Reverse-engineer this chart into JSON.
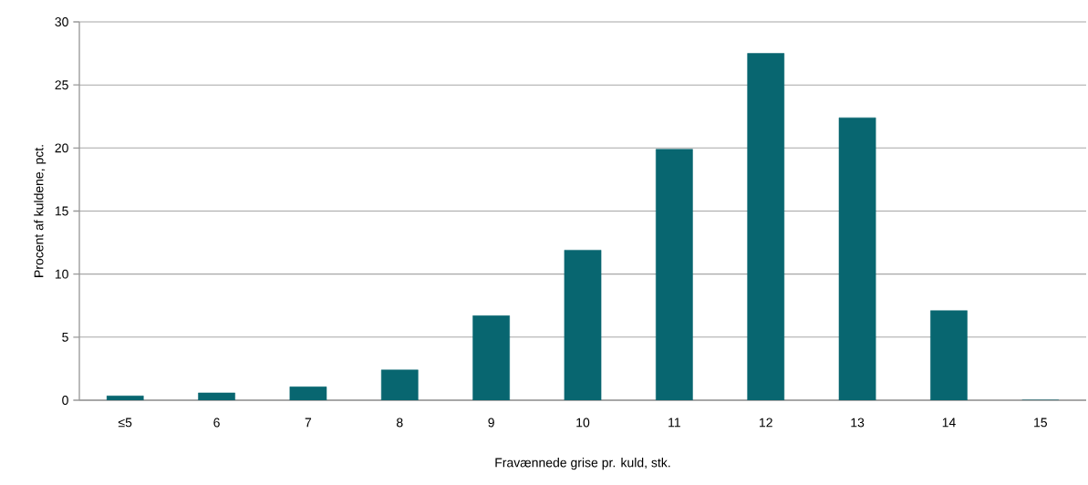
{
  "chart_data": {
    "type": "bar",
    "xlabel": "Fravænnede grise pr. kuld, stk.",
    "ylabel": "Procent af kuldene, pct.",
    "categories": [
      "≤5",
      "6",
      "7",
      "8",
      "9",
      "10",
      "11",
      "12",
      "13",
      "14",
      "15"
    ],
    "values": [
      0.34,
      0.58,
      1.06,
      2.4,
      6.7,
      11.9,
      19.9,
      27.5,
      22.4,
      7.1,
      0
    ],
    "color": "#086670",
    "ylim": [
      0,
      30
    ],
    "yticks": [
      0,
      5,
      10,
      15,
      20,
      25,
      30
    ],
    "grid": "y"
  }
}
